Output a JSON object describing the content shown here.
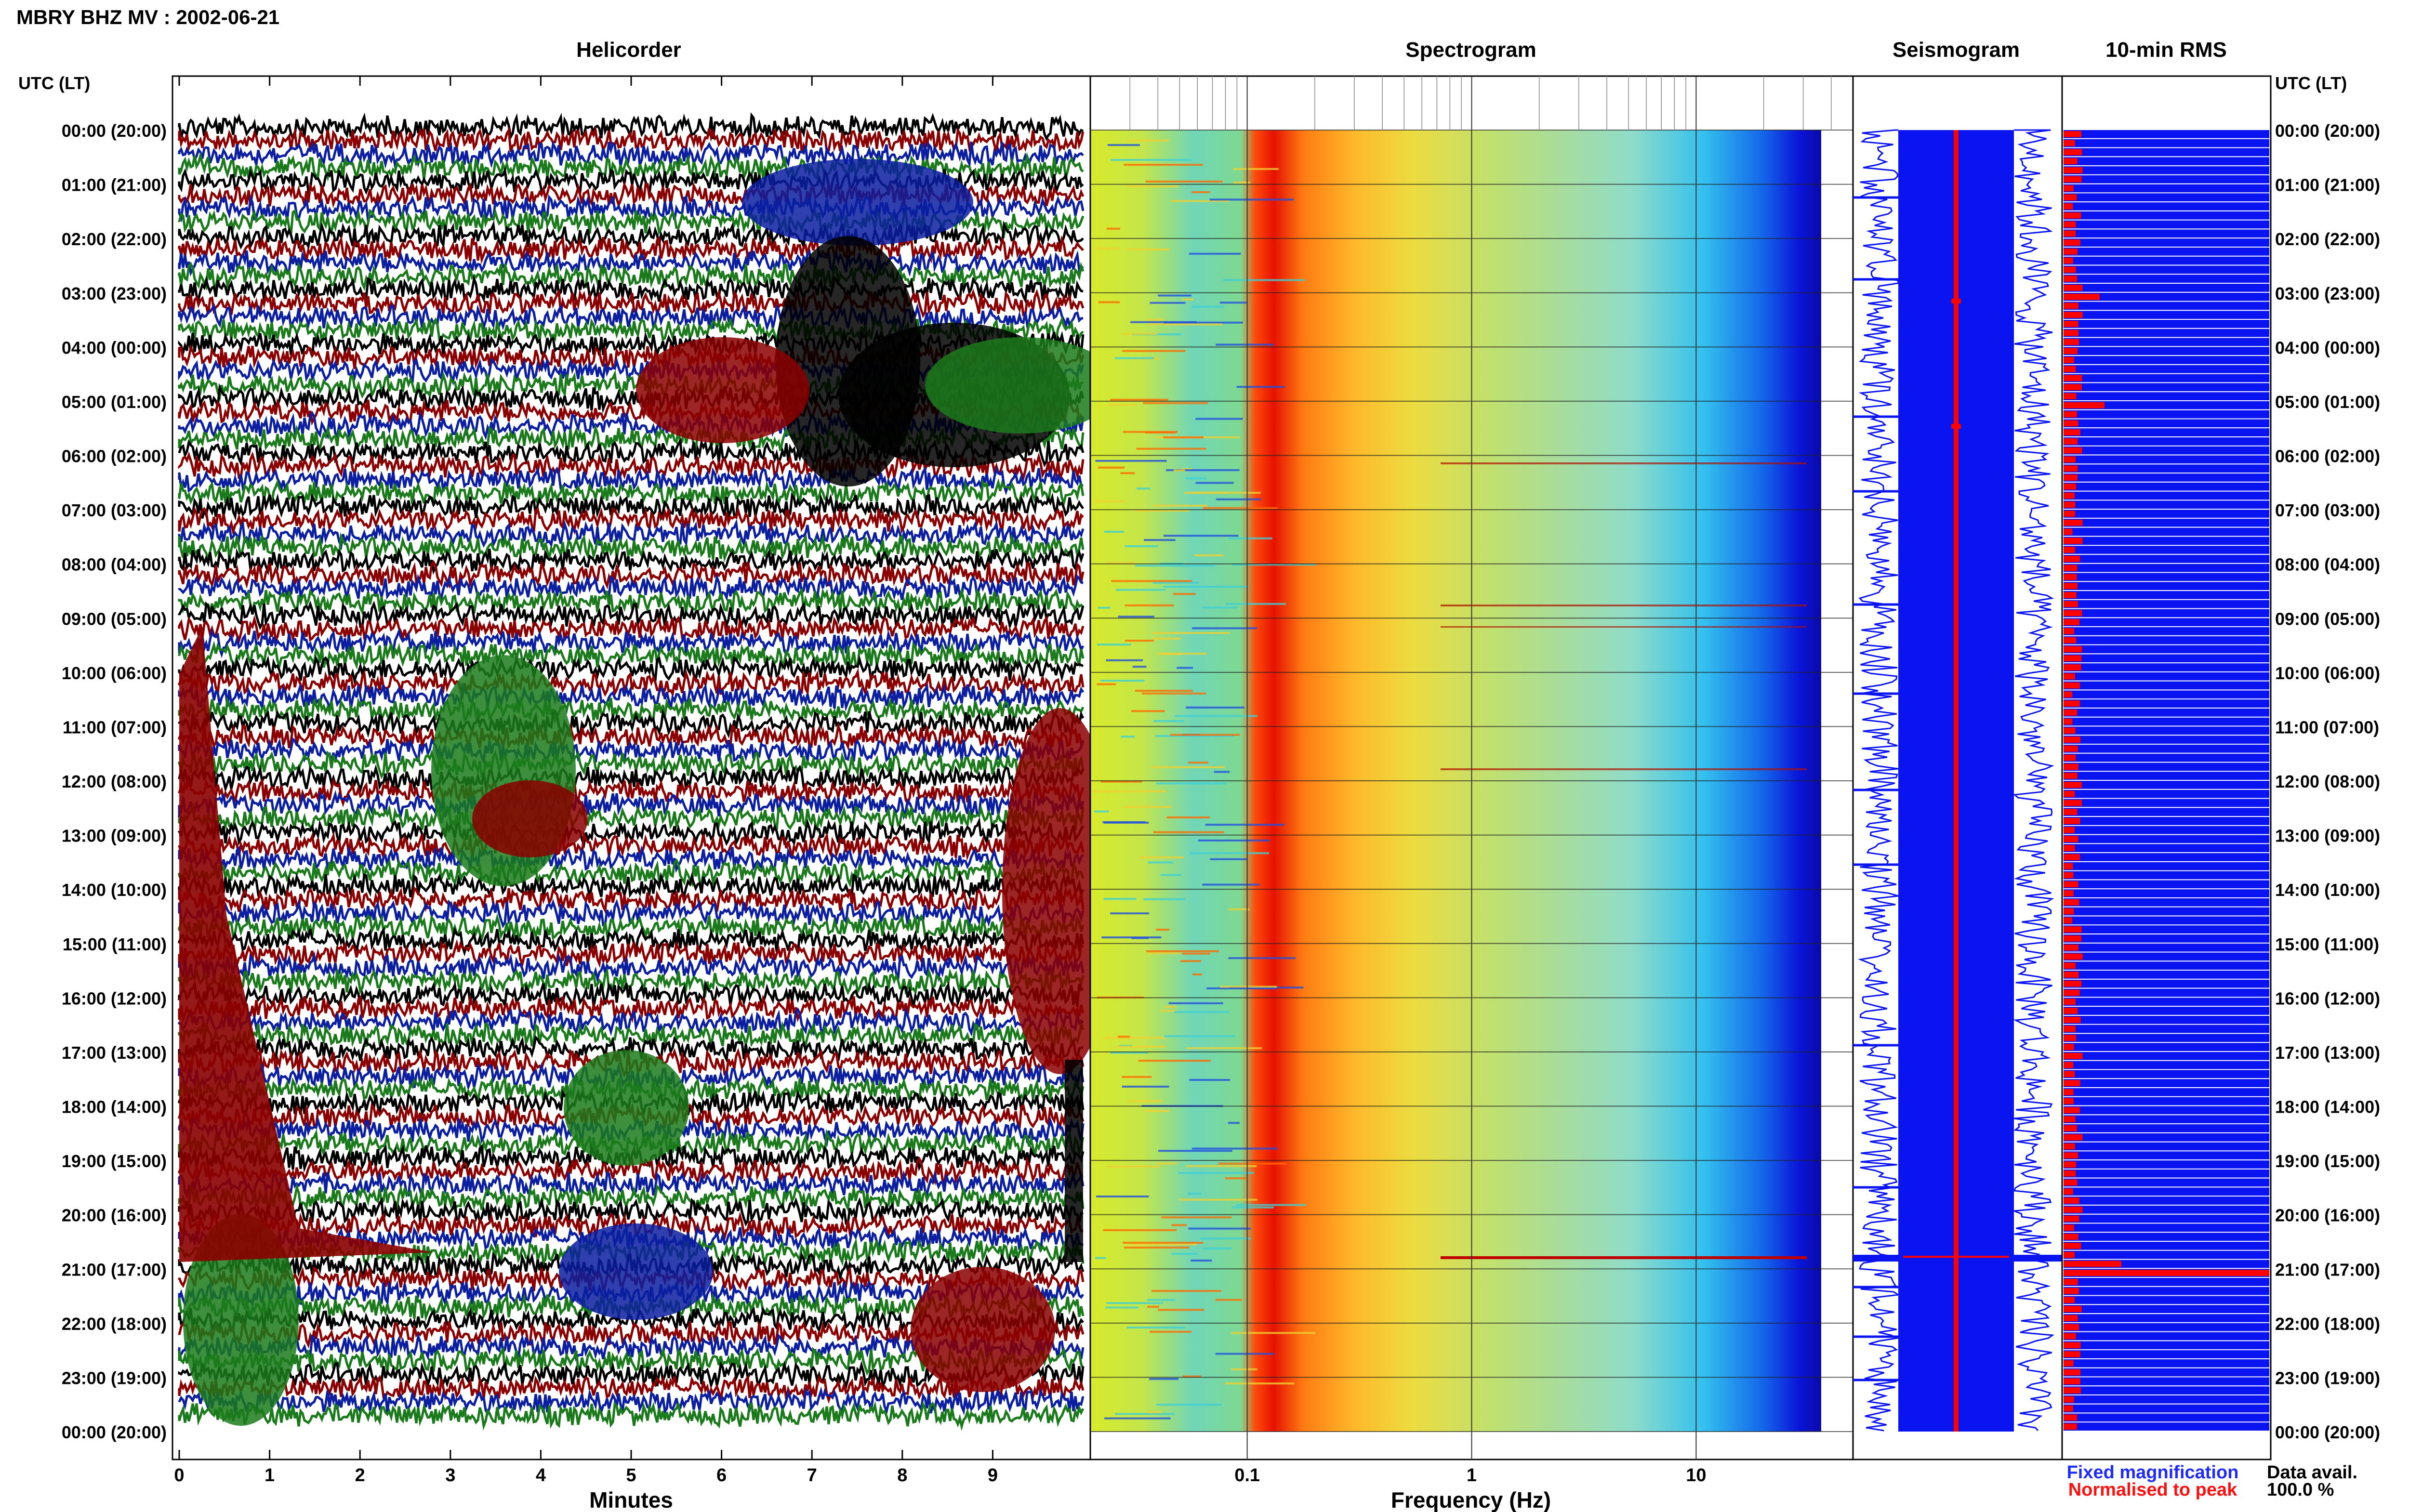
{
  "chart_data": {
    "type": "seismic_daily_summary",
    "title": "MBRY BHZ MV : 2002-06-21",
    "panels": {
      "helicorder": {
        "title": "Helicorder",
        "xlabel": "Minutes",
        "x_ticks": [
          "0",
          "1",
          "2",
          "3",
          "4",
          "5",
          "6",
          "7",
          "8",
          "9"
        ],
        "xlim": [
          0,
          10
        ],
        "trace_colors": [
          "#000000",
          "#8b0000",
          "#0b1fa0",
          "#1b7a1b"
        ]
      },
      "spectrogram": {
        "title": "Spectrogram",
        "xlabel": "Frequency (Hz)",
        "x_scale": "log",
        "x_ticks": [
          "0.1",
          "1",
          "10"
        ],
        "xlim": [
          0.02,
          50
        ]
      },
      "seismogram": {
        "title": "Seismogram"
      },
      "rms": {
        "title": "10-min RMS"
      }
    },
    "time_axis": {
      "header": "UTC (LT)",
      "labels": [
        "00:00 (20:00)",
        "01:00 (21:00)",
        "02:00 (22:00)",
        "03:00 (23:00)",
        "04:00 (00:00)",
        "05:00 (01:00)",
        "06:00 (02:00)",
        "07:00 (03:00)",
        "08:00 (04:00)",
        "09:00 (05:00)",
        "10:00 (06:00)",
        "11:00 (07:00)",
        "12:00 (08:00)",
        "13:00 (09:00)",
        "14:00 (10:00)",
        "15:00 (11:00)",
        "16:00 (12:00)",
        "17:00 (13:00)",
        "18:00 (14:00)",
        "19:00 (15:00)",
        "20:00 (16:00)",
        "21:00 (17:00)",
        "22:00 (18:00)",
        "23:00 (19:00)",
        "00:00 (20:00)"
      ]
    },
    "legend": {
      "fixed": {
        "label": "Fixed magnification",
        "color": "#1f2bff"
      },
      "normalised": {
        "label": "Normalised to peak",
        "color": "#ff1010"
      }
    },
    "data_availability": {
      "label": "Data avail.",
      "value": "100.0 %"
    },
    "colors": {
      "blue": "#0a14f0",
      "red": "#ff0000"
    }
  }
}
